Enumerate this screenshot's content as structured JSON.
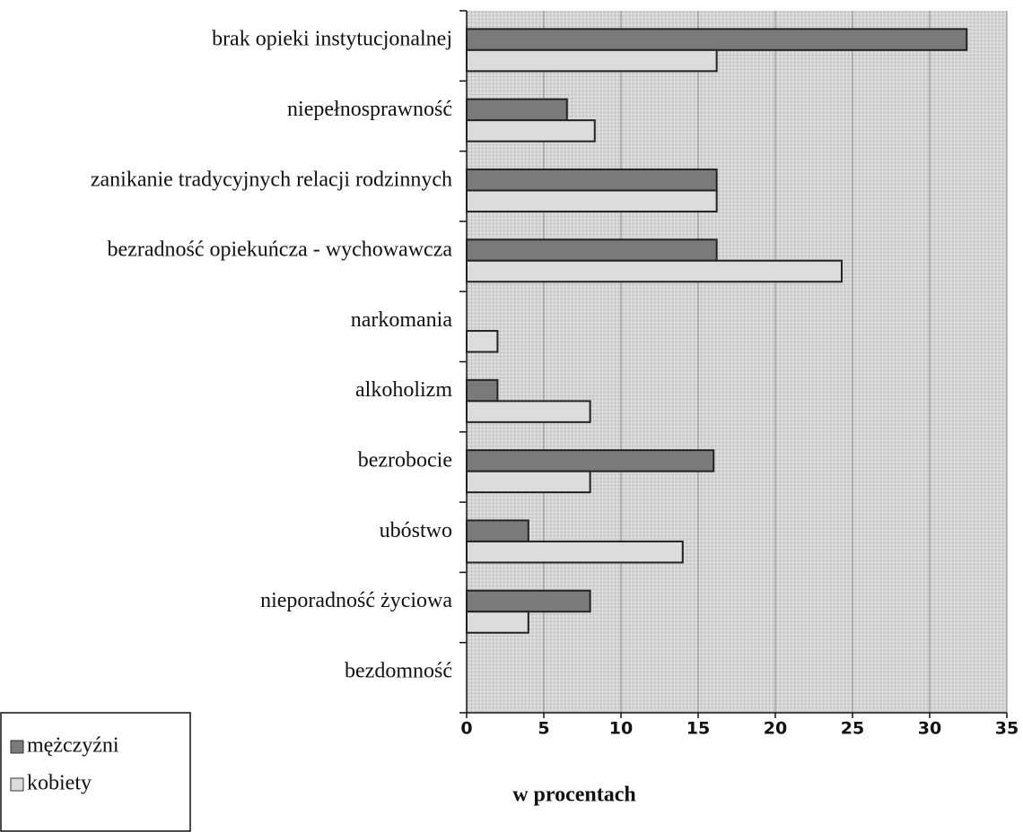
{
  "chart_data": {
    "type": "barh",
    "categories": [
      "brak opieki instytucjonalnej",
      "niepełnosprawność",
      "zanikanie tradycyjnych relacji rodzinnych",
      "bezradność opiekuńcza - wychowawcza",
      "narkomania",
      "alkoholizm",
      "bezrobocie",
      "ubóstwo",
      "nieporadność życiowa",
      "bezdomność"
    ],
    "series": [
      {
        "name": "mężczyźni",
        "color": "#7a7a7a",
        "values": [
          32.4,
          6.5,
          16.2,
          16.2,
          0,
          2,
          16,
          4,
          8,
          0
        ]
      },
      {
        "name": "kobiety",
        "color": "#dcdcdc",
        "values": [
          16.2,
          8.3,
          16.2,
          24.3,
          2,
          8,
          8,
          14,
          4,
          0
        ]
      }
    ],
    "xlim": [
      0,
      35
    ],
    "xticks": [
      0,
      5,
      10,
      15,
      20,
      25,
      30,
      35
    ],
    "xlabel": "w procentach",
    "grid": true,
    "legend": "lower left"
  }
}
